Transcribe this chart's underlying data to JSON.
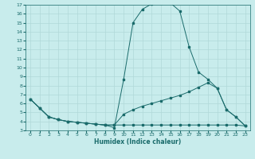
{
  "xlabel": "Humidex (Indice chaleur)",
  "bg_color": "#c8ecec",
  "grid_color": "#b0d8d8",
  "line_color": "#1a6b6b",
  "xlim": [
    -0.5,
    23.5
  ],
  "ylim": [
    3,
    17
  ],
  "xticks": [
    0,
    1,
    2,
    3,
    4,
    5,
    6,
    7,
    8,
    9,
    10,
    11,
    12,
    13,
    14,
    15,
    16,
    17,
    18,
    19,
    20,
    21,
    22,
    23
  ],
  "yticks": [
    3,
    4,
    5,
    6,
    7,
    8,
    9,
    10,
    11,
    12,
    13,
    14,
    15,
    16,
    17
  ],
  "lines": [
    {
      "x": [
        0,
        1,
        2,
        3,
        4,
        5,
        6,
        7,
        8,
        9,
        10,
        11,
        12,
        13,
        14,
        15,
        16,
        17,
        18,
        19,
        20,
        21,
        22,
        23
      ],
      "y": [
        6.5,
        5.5,
        4.5,
        4.2,
        4.0,
        3.9,
        3.8,
        3.7,
        3.6,
        3.3,
        8.7,
        15.0,
        16.5,
        17.1,
        17.2,
        17.2,
        16.3,
        12.3,
        9.5,
        8.7,
        7.7,
        5.3,
        4.5,
        3.5
      ]
    },
    {
      "x": [
        0,
        1,
        2,
        3,
        4,
        5,
        6,
        7,
        8,
        9,
        10,
        11,
        12,
        13,
        14,
        15,
        16,
        17,
        18,
        19,
        20,
        21,
        22,
        23
      ],
      "y": [
        6.5,
        5.5,
        4.5,
        4.2,
        4.0,
        3.9,
        3.8,
        3.7,
        3.6,
        3.6,
        4.8,
        5.3,
        5.7,
        6.0,
        6.3,
        6.6,
        6.9,
        7.3,
        7.8,
        8.3,
        7.7,
        5.3,
        4.5,
        3.5
      ]
    },
    {
      "x": [
        0,
        1,
        2,
        3,
        4,
        5,
        6,
        7,
        8,
        9,
        10,
        11,
        12,
        13,
        14,
        15,
        16,
        17,
        18,
        19,
        20,
        21,
        22,
        23
      ],
      "y": [
        6.5,
        5.5,
        4.5,
        4.2,
        4.0,
        3.9,
        3.8,
        3.7,
        3.6,
        3.6,
        3.6,
        3.6,
        3.6,
        3.6,
        3.6,
        3.6,
        3.6,
        3.6,
        3.6,
        3.6,
        3.6,
        3.6,
        3.6,
        3.5
      ]
    }
  ]
}
